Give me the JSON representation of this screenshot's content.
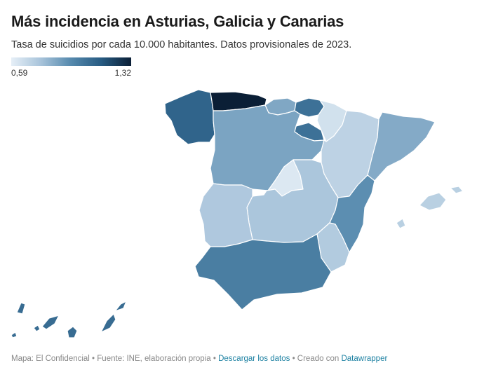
{
  "header": {
    "title": "Más incidencia en Asturias, Galicia y Canarias",
    "subtitle": "Tasa de suicidios por cada 10.000 habitantes. Datos provisionales de 2023."
  },
  "legend": {
    "min_label": "0,59",
    "max_label": "1,32",
    "min": 0.59,
    "max": 1.32
  },
  "chart_data": {
    "type": "choropleth",
    "title": "Más incidencia en Asturias, Galicia y Canarias",
    "subtitle": "Tasa de suicidios por cada 10.000 habitantes. Datos provisionales de 2023.",
    "scale": {
      "min": 0.59,
      "max": 1.32,
      "colors": [
        "#e6eff7",
        "#a7c3da",
        "#5589ad",
        "#275b82",
        "#0b1f36"
      ]
    },
    "regions": [
      {
        "id": "asturias",
        "value": 1.32
      },
      {
        "id": "galicia",
        "value": 1.1
      },
      {
        "id": "canarias",
        "value": 1.07
      },
      {
        "id": "pais-vasco",
        "value": 1.05
      },
      {
        "id": "la-rioja",
        "value": 1.05
      },
      {
        "id": "andalucia",
        "value": 1.0
      },
      {
        "id": "comunitat-valenciana",
        "value": 0.94
      },
      {
        "id": "castilla-y-leon",
        "value": 0.87
      },
      {
        "id": "cantabria",
        "value": 0.86
      },
      {
        "id": "cataluna",
        "value": 0.85
      },
      {
        "id": "castilla-la-mancha",
        "value": 0.76
      },
      {
        "id": "extremadura",
        "value": 0.75
      },
      {
        "id": "region-de-murcia",
        "value": 0.74
      },
      {
        "id": "illes-balears",
        "value": 0.72
      },
      {
        "id": "aragon",
        "value": 0.71
      },
      {
        "id": "navarra",
        "value": 0.65
      },
      {
        "id": "comunidad-de-madrid",
        "value": 0.62
      }
    ]
  },
  "footer": {
    "source": "Mapa: El Confidencial • Fuente: INE, elaboración propia •",
    "download_label": "Descargar los datos",
    "created_with": "• Creado con",
    "datawrapper_label": "Datawrapper"
  }
}
